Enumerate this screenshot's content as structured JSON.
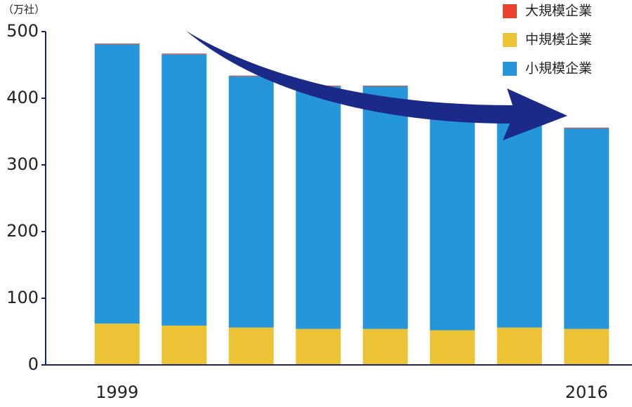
{
  "chart_data": {
    "type": "stacked_bar",
    "y_label": "（万社）",
    "categories": [
      "1999",
      null,
      null,
      null,
      null,
      null,
      null,
      "2016"
    ],
    "series": [
      {
        "name": "大規模企業",
        "color": "#e8412c",
        "values": [
          1,
          1,
          1,
          1,
          1,
          1,
          1,
          1
        ]
      },
      {
        "name": "中規模企業",
        "color": "#ebc334",
        "values": [
          62,
          59,
          56,
          54,
          54,
          52,
          56,
          54
        ]
      },
      {
        "name": "小規模企業",
        "color": "#2596d9",
        "values": [
          419,
          407,
          377,
          364,
          364,
          334,
          325,
          301
        ]
      }
    ],
    "ylim": [
      0,
      500
    ],
    "yticks": [
      0,
      100,
      200,
      300,
      400,
      500
    ],
    "legend": "upper right"
  }
}
